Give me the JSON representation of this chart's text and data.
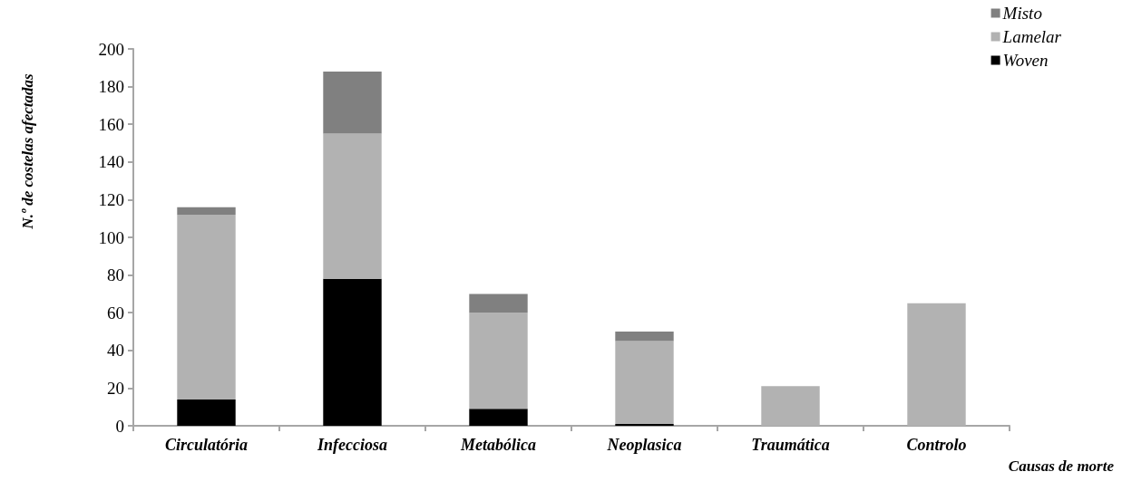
{
  "chart_data": {
    "type": "bar",
    "stacked": true,
    "categories": [
      "Circulatória",
      "Infecciosa",
      "Metabólica",
      "Neoplasica",
      "Traumática",
      "Controlo"
    ],
    "xlabel": "Causas de morte",
    "ylabel": "N.º de costelas afectadas",
    "ylim": [
      0,
      200
    ],
    "yticks": [
      0,
      20,
      40,
      60,
      80,
      100,
      120,
      140,
      160,
      180,
      200
    ],
    "grid": false,
    "legend": "top right",
    "series": [
      {
        "name": "Woven",
        "color": "#000000",
        "values": [
          14,
          78,
          9,
          1,
          0,
          0
        ]
      },
      {
        "name": "Lamelar",
        "color": "#b2b2b2",
        "values": [
          98,
          77,
          51,
          44,
          21,
          65
        ]
      },
      {
        "name": "Misto",
        "color": "#808080",
        "values": [
          4,
          33,
          10,
          5,
          0,
          0
        ]
      }
    ]
  }
}
